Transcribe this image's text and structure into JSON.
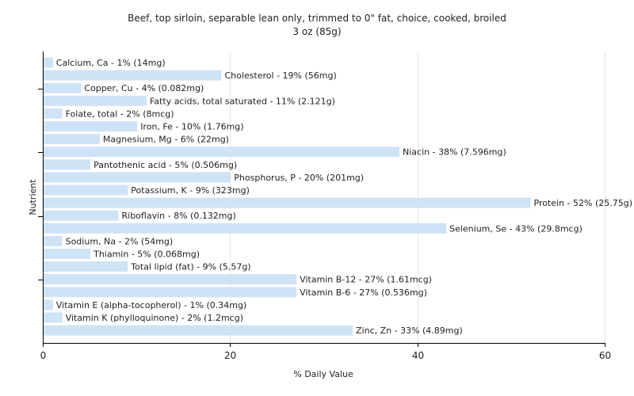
{
  "chart_data": {
    "type": "bar",
    "orientation": "horizontal",
    "title": "Beef, top sirloin, separable lean only, trimmed to 0\" fat, choice, cooked, broiled",
    "subtitle": "3 oz (85g)",
    "xlabel": "% Daily Value",
    "ylabel": "Nutrient",
    "xlim": [
      0,
      60
    ],
    "xticks": [
      "0",
      "20",
      "40",
      "60"
    ],
    "grid": true,
    "bar_color": "#cfe3f7",
    "categories": [
      "Calcium, Ca",
      "Cholesterol",
      "Copper, Cu",
      "Fatty acids, total saturated",
      "Folate, total",
      "Iron, Fe",
      "Magnesium, Mg",
      "Niacin",
      "Pantothenic acid",
      "Phosphorus, P",
      "Potassium, K",
      "Protein",
      "Riboflavin",
      "Selenium, Se",
      "Sodium, Na",
      "Thiamin",
      "Total lipid (fat)",
      "Vitamin B-12",
      "Vitamin B-6",
      "Vitamin E (alpha-tocopherol)",
      "Vitamin K (phylloquinone)",
      "Zinc, Zn"
    ],
    "values": [
      1,
      19,
      4,
      11,
      2,
      10,
      6,
      38,
      5,
      20,
      9,
      52,
      8,
      43,
      2,
      5,
      9,
      27,
      27,
      1,
      2,
      33
    ],
    "labels": [
      "Calcium, Ca - 1% (14mg)",
      "Cholesterol - 19% (56mg)",
      "Copper, Cu - 4% (0.082mg)",
      "Fatty acids, total saturated - 11% (2.121g)",
      "Folate, total - 2% (8mcg)",
      "Iron, Fe - 10% (1.76mg)",
      "Magnesium, Mg - 6% (22mg)",
      "Niacin - 38% (7.596mg)",
      "Pantothenic acid - 5% (0.506mg)",
      "Phosphorus, P - 20% (201mg)",
      "Potassium, K - 9% (323mg)",
      "Protein - 52% (25.75g)",
      "Riboflavin - 8% (0.132mg)",
      "Selenium, Se - 43% (29.8mcg)",
      "Sodium, Na - 2% (54mg)",
      "Thiamin - 5% (0.068mg)",
      "Total lipid (fat) - 9% (5.57g)",
      "Vitamin B-12 - 27% (1.61mcg)",
      "Vitamin B-6 - 27% (0.536mg)",
      "Vitamin E (alpha-tocopherol) - 1% (0.34mg)",
      "Vitamin K (phylloquinone) - 2% (1.2mcg)",
      "Zinc, Zn - 33% (4.89mg)"
    ]
  }
}
